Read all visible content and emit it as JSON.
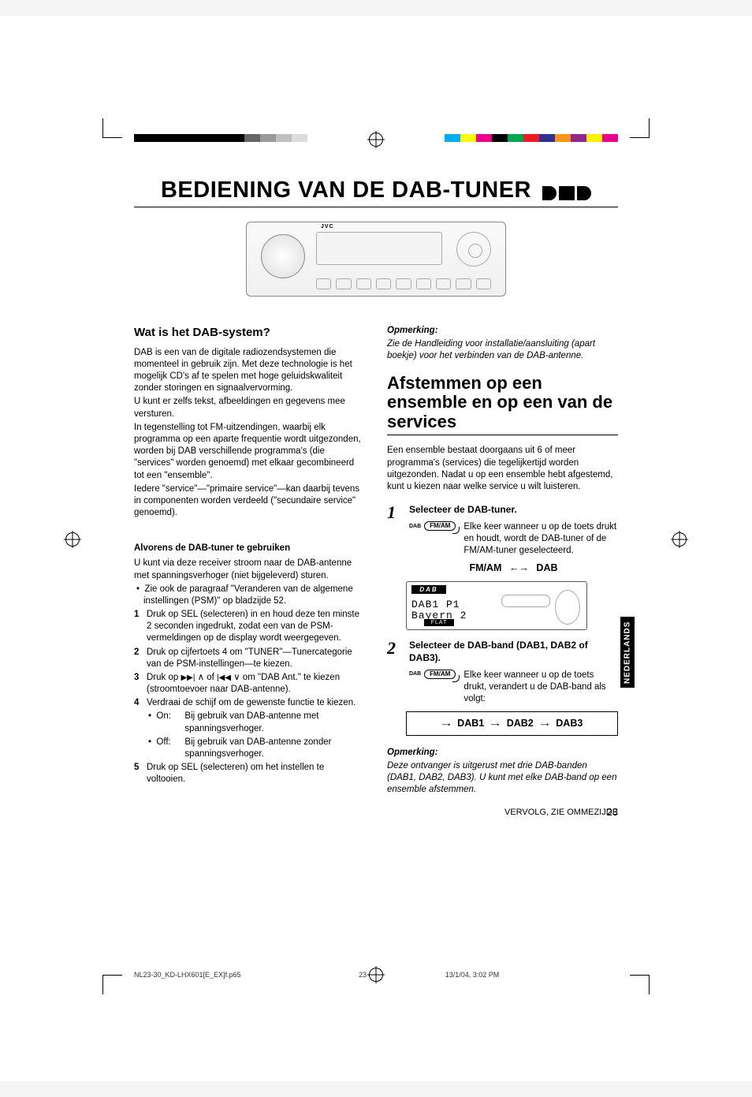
{
  "reg_colors_left": [
    "#000000",
    "#000000",
    "#000000",
    "#000000",
    "#000000",
    "#000000",
    "#000000",
    "#666666",
    "#999999",
    "#bfbfbf",
    "#dcdcdc"
  ],
  "reg_colors_right": [
    "#00aeef",
    "#ffff00",
    "#ec008c",
    "#000000",
    "#00a651",
    "#ed1c24",
    "#2e3192",
    "#f7941d",
    "#92278f",
    "#fff200",
    "#ec008c"
  ],
  "title": "BEDIENING VAN DE DAB-TUNER",
  "side_tab": "NEDERLANDS",
  "device_brand": "JVC",
  "left": {
    "q_heading": "Wat is het DAB-system?",
    "p1": "DAB is een van de digitale radiozendsystemen die momenteel in gebruik zijn. Met deze technologie is het mogelijk CD's af te spelen met hoge geluidskwaliteit zonder storingen en signaalvervorming.",
    "p2": "U kunt er zelfs tekst, afbeeldingen en gegevens mee versturen.",
    "p3": "In tegenstelling tot FM-uitzendingen, waarbij elk programma op een aparte frequentie wordt uitgezonden, worden bij DAB verschillende programma's (die \"services\" worden genoemd) met elkaar gecombineerd tot een \"ensemble\".",
    "p4": "Iedere \"service\"—\"primaire service\"—kan daarbij tevens in componenten worden verdeeld (\"secundaire service\" genoemd).",
    "before_heading": "Alvorens de DAB-tuner te gebruiken",
    "before_p": "U kunt via deze receiver stroom naar de DAB-antenne met spanningsverhoger (niet bijgeleverd) sturen.",
    "before_bullet": "Zie ook de paragraaf \"Veranderen van de algemene instellingen (PSM)\" op bladzijde 52.",
    "step1": "Druk op SEL (selecteren) in en houd deze ten minste 2 seconden ingedrukt, zodat een van de PSM-vermeldingen op de display wordt weergegeven.",
    "step2": "Druk op cijfertoets 4 om \"TUNER\"—Tunercategorie van de PSM-instellingen—te kiezen.",
    "step3_pre": "Druk op ",
    "step3_post": " om \"DAB Ant.\" te kiezen (stroomtoevoer naar DAB-antenne).",
    "step4": "Verdraai de schijf om de gewenste functie te kiezen.",
    "on_label": "On:",
    "on_text": "Bij gebruik van DAB-antenne met spanningsverhoger.",
    "off_label": "Off:",
    "off_text": "Bij gebruik van DAB-antenne zonder spanningsverhoger.",
    "step5": "Druk op SEL (selecteren) om het instellen te voltooien."
  },
  "right": {
    "note_h": "Opmerking:",
    "note_top": "Zie de Handleiding voor installatie/aansluiting (apart boekje) voor het verbinden van de DAB-antenne.",
    "section": "Afstemmen op een ensemble en op een van de services",
    "intro": "Een ensemble bestaat doorgaans uit 6 of meer programma's (services) die tegelijkertijd worden uitgezonden. Nadat u op een ensemble hebt afgestemd, kunt u kiezen naar welke service u wilt luisteren.",
    "s1_head": "Selecteer de DAB-tuner.",
    "s1_text": "Elke keer wanneer u op de toets drukt en houdt, wordt de DAB-tuner of de FM/AM-tuner geselecteerd.",
    "fmam_dab_left": "FM/AM",
    "fmam_dab_right": "DAB",
    "dab_small": "DAB",
    "fmam_btn": "FM/AM",
    "display_dab": "DAB",
    "display_l1": "DAB1 P1",
    "display_l2": "Bayern 2",
    "display_flat": "FLAT",
    "s2_head": "Selecteer de DAB-band (DAB1, DAB2 of DAB3).",
    "s2_text": "Elke keer wanneer u op de toets drukt, verandert u de DAB-band als volgt:",
    "band1": "DAB1",
    "band2": "DAB2",
    "band3": "DAB3",
    "note2_h": "Opmerking:",
    "note2_t": "Deze ontvanger is uitgerust met drie DAB-banden (DAB1, DAB2, DAB3). U kunt met elke DAB-band op een ensemble afstemmen.",
    "continued": "VERVOLG, ZIE OMMEZIJDE",
    "page_num": "23"
  },
  "footer": {
    "file": "NL23-30_KD-LHX601[E_EX]f.p65",
    "page": "23",
    "date": "13/1/04, 3:02 PM"
  }
}
